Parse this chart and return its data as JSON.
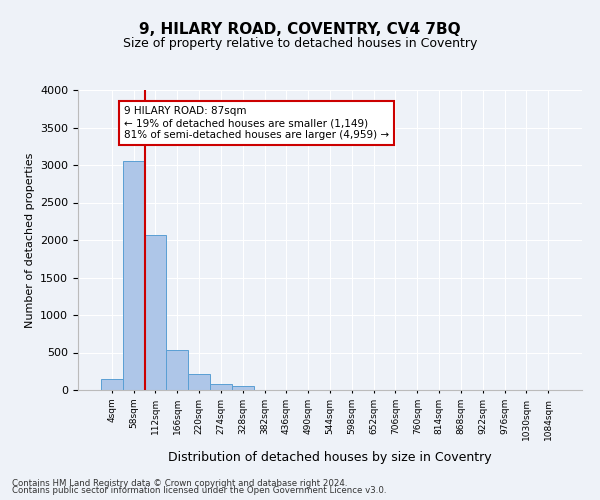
{
  "title": "9, HILARY ROAD, COVENTRY, CV4 7BQ",
  "subtitle": "Size of property relative to detached houses in Coventry",
  "xlabel": "Distribution of detached houses by size in Coventry",
  "ylabel": "Number of detached properties",
  "bin_labels": [
    "4sqm",
    "58sqm",
    "112sqm",
    "166sqm",
    "220sqm",
    "274sqm",
    "328sqm",
    "382sqm",
    "436sqm",
    "490sqm",
    "544sqm",
    "598sqm",
    "652sqm",
    "706sqm",
    "760sqm",
    "814sqm",
    "868sqm",
    "922sqm",
    "976sqm",
    "1030sqm",
    "1084sqm"
  ],
  "bar_heights": [
    150,
    3050,
    2070,
    540,
    210,
    80,
    60,
    0,
    0,
    0,
    0,
    0,
    0,
    0,
    0,
    0,
    0,
    0,
    0,
    0,
    0
  ],
  "bar_color": "#aec6e8",
  "bar_edge_color": "#5a9fd4",
  "annotation_text": "9 HILARY ROAD: 87sqm\n← 19% of detached houses are smaller (1,149)\n81% of semi-detached houses are larger (4,959) →",
  "annotation_box_color": "#ffffff",
  "annotation_box_edge": "#cc0000",
  "red_line_color": "#cc0000",
  "red_line_x": 1.5,
  "ylim": [
    0,
    4000
  ],
  "yticks": [
    0,
    500,
    1000,
    1500,
    2000,
    2500,
    3000,
    3500,
    4000
  ],
  "footer_line1": "Contains HM Land Registry data © Crown copyright and database right 2024.",
  "footer_line2": "Contains public sector information licensed under the Open Government Licence v3.0.",
  "background_color": "#eef2f8",
  "grid_color": "#ffffff"
}
